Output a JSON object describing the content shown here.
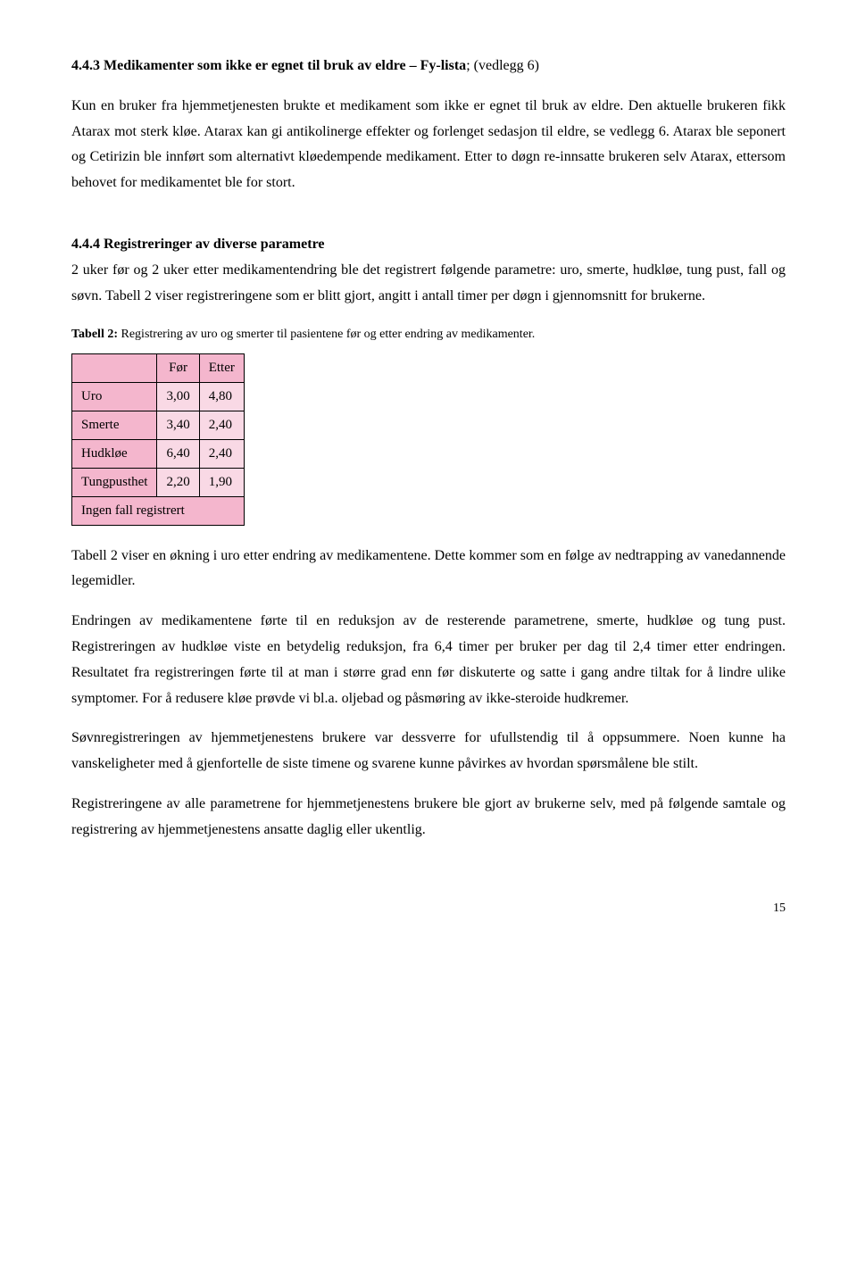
{
  "section443": {
    "heading": "4.4.3 Medikamenter som ikke er egnet til bruk av eldre – Fy-lista",
    "heading_tail": "; (vedlegg 6)",
    "para1_start": " Kun en bruker fra hjemmetjenesten brukte et medikament som ikke er egnet til bruk av eldre. Den aktuelle brukeren fikk Atarax mot sterk kløe. Atarax kan gi antikolinerge effekter og forlenget sedasjon til eldre, se vedlegg 6. Atarax ble seponert og Cetirizin ble innført som alternativt kløedempende medikament. Etter to døgn re-innsatte brukeren selv Atarax, ettersom behovet for medikamentet ble for stort."
  },
  "section444": {
    "heading": "4.4.4 Registreringer av diverse parametre",
    "para1": "2 uker før og 2 uker etter medikamentendring ble det registrert følgende parametre: uro, smerte, hudkløe, tung pust, fall og søvn. Tabell 2 viser registreringene som er blitt gjort, angitt i antall timer per døgn i gjennomsnitt for brukerne.",
    "table_caption_bold": "Tabell 2:",
    "table_caption_rest": " Registrering av uro og smerter til pasientene før og etter endring av medikamenter.",
    "table": {
      "col_before": "Før",
      "col_after": "Etter",
      "rows": [
        {
          "label": "Uro",
          "before": "3,00",
          "after": "4,80"
        },
        {
          "label": "Smerte",
          "before": "3,40",
          "after": "2,40"
        },
        {
          "label": "Hudkløe",
          "before": "6,40",
          "after": "2,40"
        },
        {
          "label": "Tungpusthet",
          "before": "2,20",
          "after": "1,90"
        }
      ],
      "footer": "Ingen fall registrert",
      "colors": {
        "pink": "#f4b6cd",
        "pale": "#f9d9e5"
      }
    },
    "para2": "Tabell 2 viser en økning i uro etter endring av medikamentene. Dette kommer som en følge av nedtrapping av vanedannende legemidler.",
    "para3": "Endringen av medikamentene førte til en reduksjon av de resterende parametrene, smerte, hudkløe og tung pust. Registreringen av hudkløe viste en betydelig reduksjon, fra 6,4 timer per bruker per dag til 2,4 timer etter endringen. Resultatet fra registreringen førte til at man i større grad enn før diskuterte og satte i gang andre tiltak for å lindre ulike symptomer. For å redusere kløe prøvde vi bl.a. oljebad og påsmøring av ikke-steroide hudkremer.",
    "para4": "Søvnregistreringen av hjemmetjenestens brukere var dessverre for ufullstendig til å oppsummere. Noen kunne ha vanskeligheter med å gjenfortelle de siste timene og svarene kunne påvirkes av hvordan spørsmålene ble stilt.",
    "para5": "Registreringene av alle parametrene for hjemmetjenestens brukere ble gjort av brukerne selv, med på følgende samtale og registrering av hjemmetjenestens ansatte daglig eller ukentlig."
  },
  "page_number": "15"
}
